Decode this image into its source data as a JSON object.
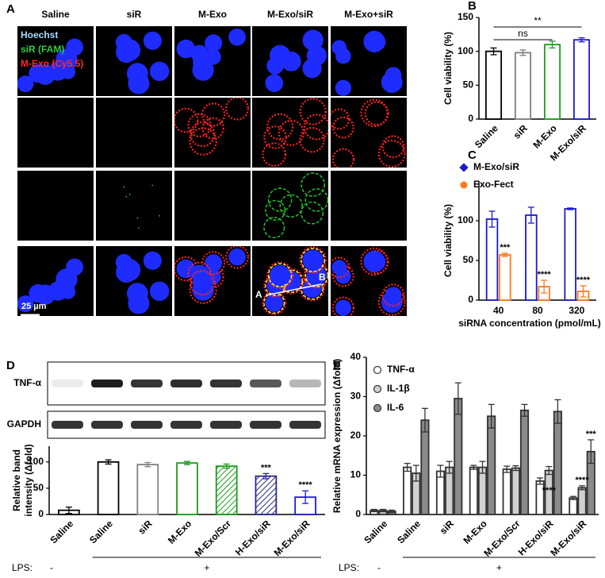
{
  "panel_a": {
    "label": "A",
    "columns": [
      "Saline",
      "siR",
      "M-Exo",
      "M-Exo/siR",
      "M-Exo+siR"
    ],
    "legend": [
      "Hoechst",
      "siR (FAM)",
      "M-Exo (Cy5.5)"
    ],
    "scale_bar": "25 µm",
    "line_labels": [
      "A",
      "B"
    ]
  },
  "panel_d_blot": {
    "label": "D",
    "rows": [
      "TNF-α",
      "GAPDH"
    ]
  },
  "chart_data": [
    {
      "type": "bar",
      "label": "B",
      "ylabel": [
        "Cell viability (%)"
      ],
      "categories": [
        "Saline",
        "siR",
        "M-Exo",
        "M-Exo/siR"
      ],
      "series": [
        {
          "values": [
            100,
            98,
            110,
            117
          ],
          "errors": [
            5,
            4,
            5,
            3
          ],
          "color": "#000000",
          "colors": [
            "#000000",
            "#808080",
            "#1a9e1a",
            "#1a1acc"
          ]
        }
      ],
      "ylim": [
        0,
        150
      ],
      "yticks": [
        0,
        50,
        100,
        150
      ],
      "annotations": [
        "ns",
        "**"
      ]
    },
    {
      "type": "bar",
      "label": "C",
      "ylabel": [
        "Cell viability (%)"
      ],
      "xlabel": "siRNA concentration (pmol/mL)",
      "categories": [
        "40",
        "80",
        "320"
      ],
      "series": [
        {
          "name": "M-Exo/siR",
          "color": "#1a1acc",
          "marker": "diamond",
          "values": [
            102,
            107,
            115
          ],
          "errors": [
            10,
            10,
            1
          ]
        },
        {
          "name": "Exo-Fect",
          "color": "#ff7a1a",
          "marker": "circle",
          "values": [
            57,
            17,
            11
          ],
          "errors": [
            2,
            8,
            7
          ]
        }
      ],
      "ylim": [
        0,
        150
      ],
      "yticks": [
        0,
        50,
        100
      ],
      "annotations": [
        "***",
        "****",
        "****"
      ]
    },
    {
      "type": "bar",
      "ylabel": [
        "Relative band",
        "intensity (Δfold)"
      ],
      "categories": [
        "Saline",
        "Saline",
        "siR",
        "M-Exo",
        "M-Exo/Scr",
        "H-Exo/siR",
        "M-Exo/siR"
      ],
      "series": [
        {
          "values": [
            8,
            100,
            95,
            98,
            92,
            73,
            33
          ],
          "errors": [
            6,
            4,
            4,
            3,
            4,
            5,
            12
          ],
          "color": "#000000",
          "colors": [
            "#000000",
            "#000000",
            "#808080",
            "#1a9e1a",
            "#1a9e1a",
            "#2a2a8a",
            "#1a1acc"
          ],
          "hatched": [
            false,
            false,
            false,
            false,
            true,
            true,
            false
          ]
        }
      ],
      "ylim": [
        0,
        130
      ],
      "yticks": [
        0,
        50,
        100
      ],
      "annotations": [
        "***",
        "****"
      ],
      "lps": {
        "label": "LPS:",
        "minus": "-",
        "plus": "+"
      }
    },
    {
      "type": "bar",
      "label": "E",
      "ylabel": [
        "Relative mRNA expression (Δfold)"
      ],
      "categories": [
        "Saline",
        "Saline",
        "siR",
        "M-Exo",
        "M-Exo/Scr",
        "H-Exo/siR",
        "M-Exo/siR"
      ],
      "series": [
        {
          "name": "TNF-α",
          "color": "#333333",
          "fill": "#ffffff",
          "values": [
            1,
            12,
            11,
            12,
            11.5,
            8.5,
            4.2
          ],
          "errors": [
            0.3,
            1,
            1.5,
            0.5,
            0.8,
            0.8,
            0.4
          ]
        },
        {
          "name": "IL-1β",
          "color": "#333333",
          "fill": "#d0d0d0",
          "values": [
            1,
            10.5,
            12,
            12,
            11.8,
            11.2,
            6.8
          ],
          "errors": [
            0.3,
            2,
            1.5,
            1.5,
            0.6,
            1,
            0.5
          ]
        },
        {
          "name": "IL-6",
          "color": "#333333",
          "fill": "#8a8a8a",
          "values": [
            0.8,
            24,
            29.5,
            25,
            26.5,
            26.2,
            16
          ],
          "errors": [
            0.3,
            3,
            4,
            3,
            1.5,
            3,
            3
          ]
        }
      ],
      "ylim": [
        0,
        40
      ],
      "yticks": [
        0,
        10,
        20,
        30,
        40
      ],
      "annotations": [
        "****",
        "****",
        "***"
      ],
      "lps": {
        "label": "LPS:",
        "minus": "-",
        "plus": "+"
      }
    }
  ]
}
